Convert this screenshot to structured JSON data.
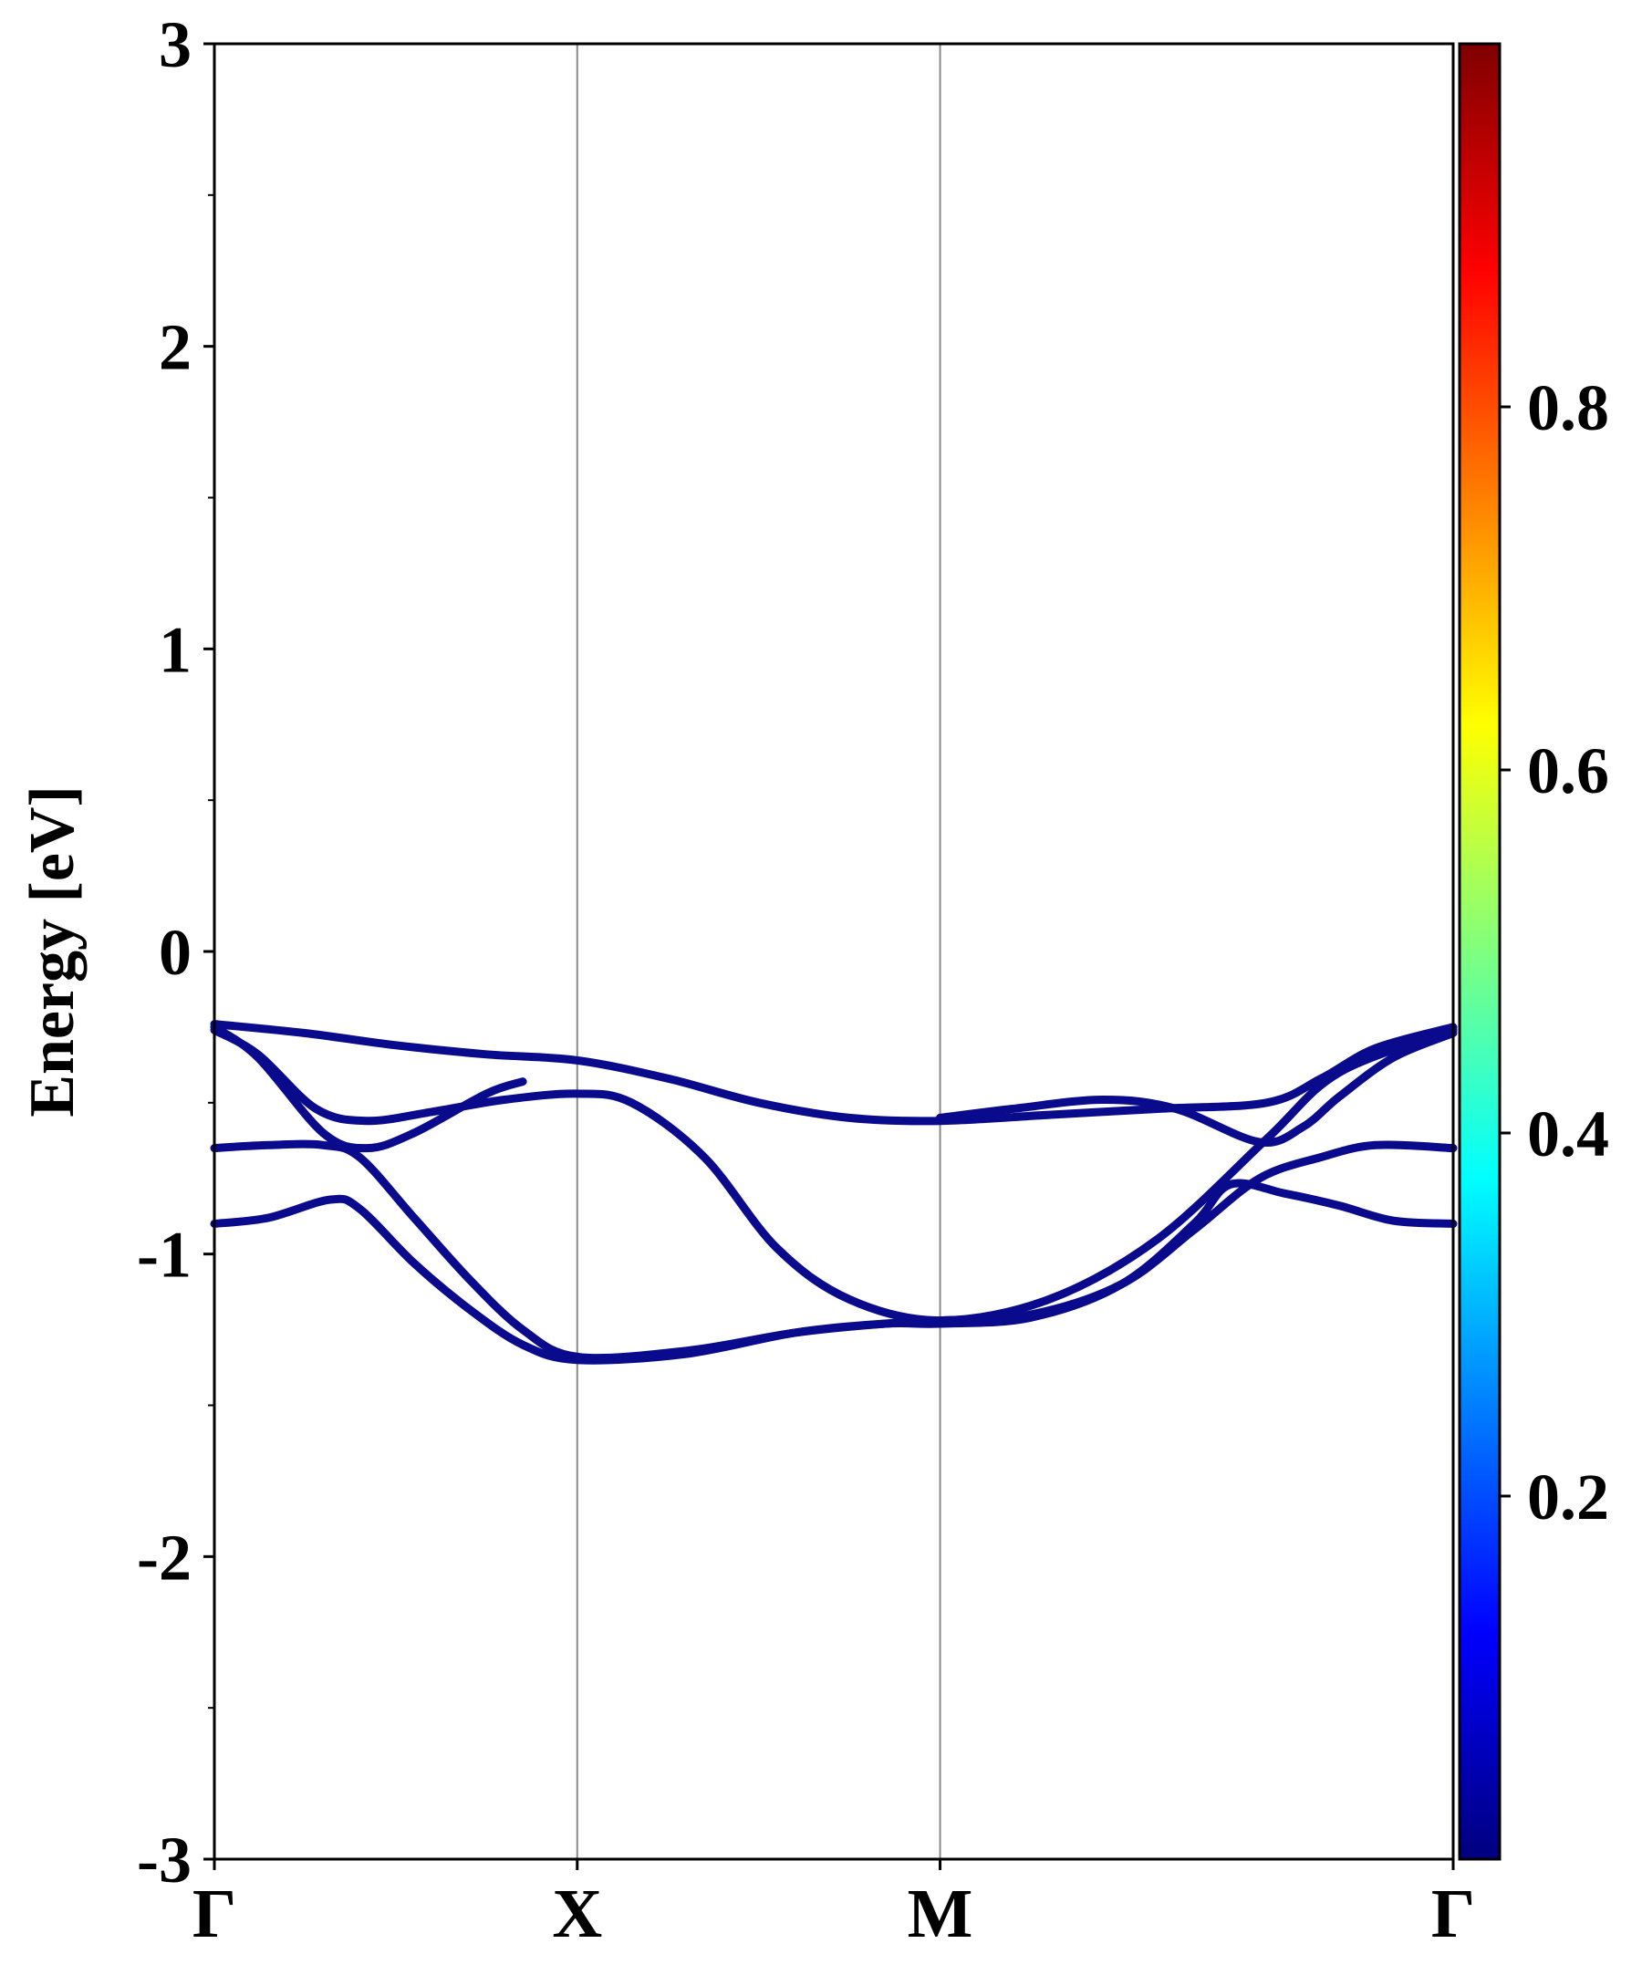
{
  "chart_data": {
    "type": "line",
    "title": "",
    "xlabel": "",
    "ylabel": "Energy [eV]",
    "ylim": [
      -3,
      3
    ],
    "yticks": [
      "3",
      "2",
      "1",
      "0",
      "-1",
      "-2",
      "-3"
    ],
    "ytick_values": [
      3,
      2,
      1,
      0,
      -1,
      -2,
      -3
    ],
    "xticks": [
      "Γ",
      "X",
      "M",
      "Γ"
    ],
    "xtick_positions": [
      0,
      1,
      2,
      3.414
    ],
    "grid": "vertical lines at high-symmetry points",
    "legend": "none",
    "line_color": "#0a0a8c",
    "colorbar": {
      "colormap": "jet",
      "tick_labels": [
        "0.2",
        "0.4",
        "0.6",
        "0.8"
      ],
      "tick_values": [
        0.2,
        0.4,
        0.6,
        0.8
      ],
      "range": [
        0.0,
        1.0
      ],
      "stops": [
        "#00007f",
        "#0000ff",
        "#007fff",
        "#00ffff",
        "#7fff7f",
        "#ffff00",
        "#ff7f00",
        "#ff0000",
        "#7f0000"
      ]
    },
    "series": [
      {
        "points": [
          [
            0,
            -0.24
          ],
          [
            0.25,
            -0.27
          ],
          [
            0.5,
            -0.31
          ],
          [
            0.75,
            -0.34
          ],
          [
            1,
            -0.36
          ],
          [
            1.25,
            -0.42
          ],
          [
            1.5,
            -0.5
          ],
          [
            1.75,
            -0.55
          ],
          [
            2,
            -0.56
          ],
          [
            2.3,
            -0.54
          ],
          [
            2.6,
            -0.52
          ],
          [
            2.9,
            -0.5
          ],
          [
            3.05,
            -0.42
          ],
          [
            3.2,
            -0.32
          ],
          [
            3.414,
            -0.25
          ]
        ]
      },
      {
        "points": [
          [
            0,
            -0.26
          ],
          [
            0.12,
            -0.34
          ],
          [
            0.28,
            -0.52
          ],
          [
            0.42,
            -0.56
          ],
          [
            0.6,
            -0.53
          ],
          [
            0.8,
            -0.49
          ],
          [
            1,
            -0.47
          ],
          [
            1.15,
            -0.5
          ],
          [
            1.35,
            -0.68
          ],
          [
            1.55,
            -0.98
          ],
          [
            1.75,
            -1.15
          ],
          [
            2,
            -1.22
          ],
          [
            2.3,
            -1.15
          ],
          [
            2.6,
            -0.95
          ],
          [
            2.9,
            -0.62
          ],
          [
            3.1,
            -0.4
          ],
          [
            3.414,
            -0.26
          ]
        ]
      },
      {
        "points": [
          [
            0,
            -0.25
          ],
          [
            0.12,
            -0.35
          ],
          [
            0.3,
            -0.6
          ],
          [
            0.42,
            -0.65
          ],
          [
            0.55,
            -0.6
          ],
          [
            0.75,
            -0.47
          ],
          [
            0.85,
            -0.43
          ]
        ]
      },
      {
        "points": [
          [
            2,
            -0.55
          ],
          [
            2.2,
            -0.52
          ],
          [
            2.45,
            -0.49
          ],
          [
            2.65,
            -0.52
          ],
          [
            2.88,
            -0.63
          ],
          [
            3.0,
            -0.58
          ],
          [
            3.1,
            -0.48
          ],
          [
            3.25,
            -0.35
          ],
          [
            3.414,
            -0.27
          ]
        ]
      },
      {
        "points": [
          [
            0,
            -0.65
          ],
          [
            0.15,
            -0.64
          ],
          [
            0.3,
            -0.64
          ],
          [
            0.4,
            -0.68
          ],
          [
            0.55,
            -0.88
          ],
          [
            0.7,
            -1.08
          ],
          [
            0.85,
            -1.25
          ],
          [
            1,
            -1.34
          ],
          [
            1.3,
            -1.32
          ],
          [
            1.6,
            -1.26
          ],
          [
            1.85,
            -1.23
          ],
          [
            2,
            -1.22
          ],
          [
            2.25,
            -1.2
          ],
          [
            2.5,
            -1.1
          ],
          [
            2.7,
            -0.92
          ],
          [
            2.88,
            -0.75
          ],
          [
            3.05,
            -0.68
          ],
          [
            3.2,
            -0.64
          ],
          [
            3.414,
            -0.65
          ]
        ]
      },
      {
        "points": [
          [
            0,
            -0.9
          ],
          [
            0.15,
            -0.88
          ],
          [
            0.32,
            -0.82
          ],
          [
            0.4,
            -0.85
          ],
          [
            0.55,
            -1.03
          ],
          [
            0.7,
            -1.18
          ],
          [
            0.85,
            -1.3
          ],
          [
            1,
            -1.35
          ],
          [
            1.3,
            -1.33
          ],
          [
            1.6,
            -1.26
          ],
          [
            1.85,
            -1.23
          ],
          [
            2,
            -1.23
          ],
          [
            2.25,
            -1.21
          ],
          [
            2.5,
            -1.1
          ],
          [
            2.7,
            -0.9
          ],
          [
            2.8,
            -0.77
          ],
          [
            2.95,
            -0.8
          ],
          [
            3.1,
            -0.84
          ],
          [
            3.25,
            -0.89
          ],
          [
            3.414,
            -0.9
          ]
        ]
      }
    ]
  }
}
